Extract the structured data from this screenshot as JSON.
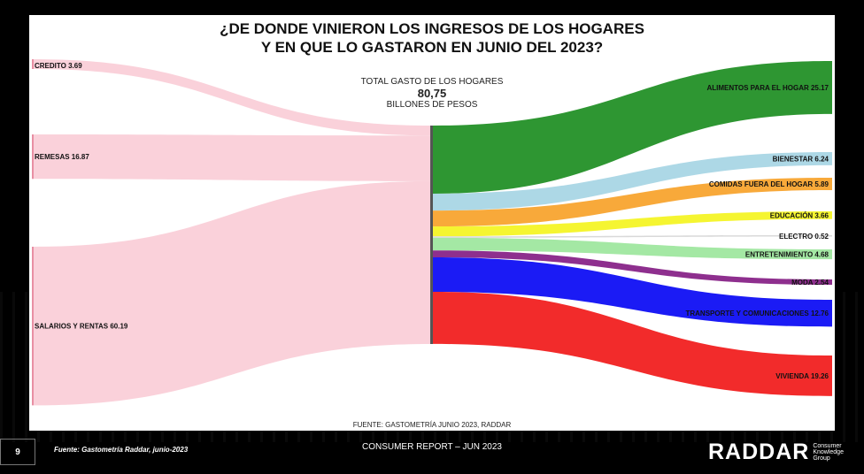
{
  "title": {
    "line1": "¿DE DONDE VINIERON LOS INGRESOS DE LOS HOGARES",
    "line2": "Y EN QUE LO GASTARON EN JUNIO DEL 2023?"
  },
  "total": {
    "label": "TOTAL GASTO DE LOS HOGARES",
    "value": "80,75",
    "unit": "BILLONES DE PESOS"
  },
  "chart_source": "FUENTE: GASTOMETRÍA JUNIO 2023, RADDAR",
  "footer": {
    "page": "9",
    "source": "Fuente: Gastometría Raddar, junio-2023",
    "report": "CONSUMER REPORT – JUN 2023",
    "logo": "RADDAR",
    "tagline": "Consumer Knowledge Group"
  },
  "chart_data": {
    "type": "sankey",
    "total": 80.75,
    "sources": [
      {
        "label": "CREDITO 3.69",
        "value": 3.69,
        "color": "#f9c9d3"
      },
      {
        "label": "REMESAS 16.87",
        "value": 16.87,
        "color": "#f9c9d3"
      },
      {
        "label": "SALARIOS Y RENTAS 60.19",
        "value": 60.19,
        "color": "#f9c9d3"
      }
    ],
    "targets": [
      {
        "label": "ALIMENTOS PARA EL HOGAR 25.17",
        "value": 25.17,
        "color": "#2e9632"
      },
      {
        "label": "BIENESTAR 6.24",
        "value": 6.24,
        "color": "#add8e6"
      },
      {
        "label": "COMIDAS FUERA DEL HOGAR 5.89",
        "value": 5.89,
        "color": "#f8a93a"
      },
      {
        "label": "EDUCACIÓN 3.66",
        "value": 3.66,
        "color": "#f5f531"
      },
      {
        "label": "ELECTRO 0.52",
        "value": 0.52,
        "color": "#d9d9d9"
      },
      {
        "label": "ENTRETENIMIENTO 4.68",
        "value": 4.68,
        "color": "#a4e8a4"
      },
      {
        "label": "MODA 2.54",
        "value": 2.54,
        "color": "#8e2f8e"
      },
      {
        "label": "TRANSPORTE Y COMUNICACIONES 12.76",
        "value": 12.76,
        "color": "#1b1bf5"
      },
      {
        "label": "VIVIENDA 19.26",
        "value": 19.26,
        "color": "#f22b2b"
      }
    ]
  }
}
